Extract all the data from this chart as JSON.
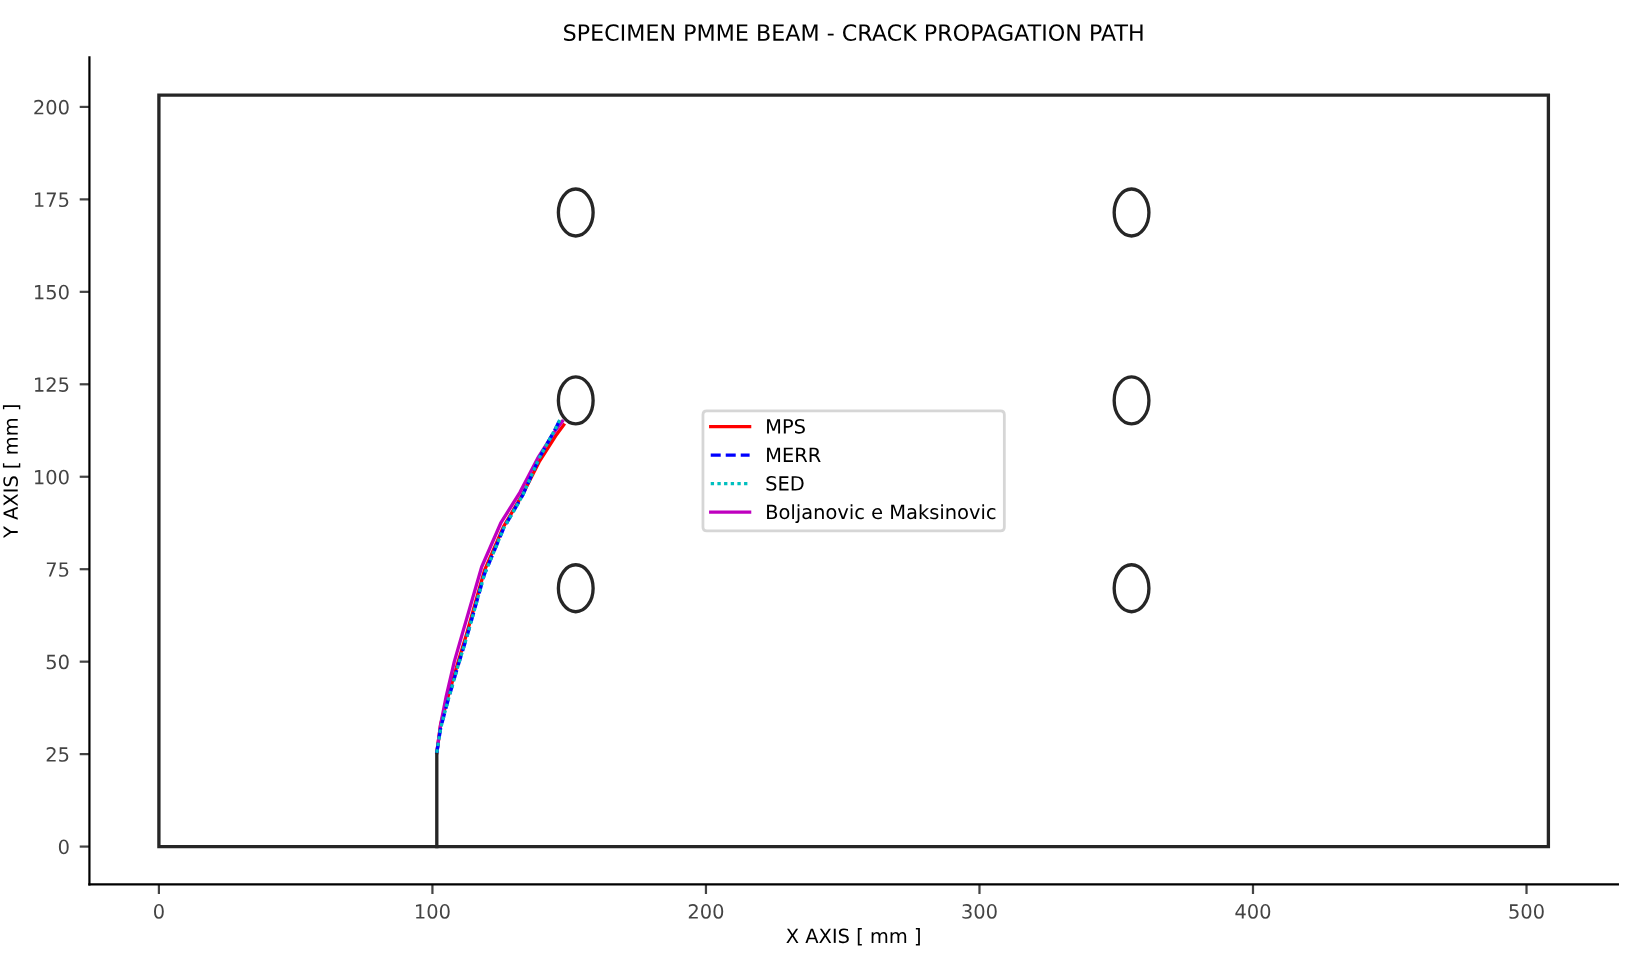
{
  "chart_data": {
    "type": "line",
    "title": "SPECIMEN PMME BEAM - CRACK PROPAGATION PATH",
    "xlabel": "X AXIS [ mm ]",
    "ylabel": "Y AXIS [ mm ]",
    "xlim": [
      -25.4,
      533.4
    ],
    "ylim": [
      -10.2,
      213.4
    ],
    "xticks": [
      0,
      100,
      200,
      300,
      400,
      500
    ],
    "yticks": [
      0,
      25,
      50,
      75,
      100,
      125,
      150,
      175,
      200
    ],
    "grid": false,
    "legend": "center",
    "series": [
      {
        "name": "MPS",
        "color": "#ff0000",
        "line_style": "solid",
        "x": [
          101.6,
          103,
          105.5,
          109,
          112.5,
          119,
          126,
          133,
          139,
          145,
          148
        ],
        "values": [
          25.4,
          33,
          40,
          49,
          57.5,
          74.6,
          86.5,
          95.3,
          104,
          111,
          114
        ]
      },
      {
        "name": "MERR",
        "color": "#0000ff",
        "line_style": "dashed",
        "x": [
          101.6,
          103,
          105.5,
          109,
          112.5,
          119,
          126,
          133,
          139,
          145,
          147
        ],
        "values": [
          25.4,
          32,
          39,
          48,
          56.5,
          73.6,
          86,
          95,
          105,
          113,
          116
        ]
      },
      {
        "name": "SED",
        "color": "#00bfbf",
        "line_style": "dotted",
        "x": [
          101.6,
          103,
          105.5,
          109,
          112.5,
          119,
          126,
          133,
          139,
          145,
          147
        ],
        "values": [
          25.4,
          32,
          39,
          48,
          56.5,
          73.6,
          86,
          95,
          105,
          113,
          116
        ]
      },
      {
        "name": "Boljanovic e Maksinovic",
        "color": "#bf00bf",
        "line_style": "solid",
        "x": [
          101.6,
          103,
          105,
          108,
          111.5,
          118,
          125,
          132,
          138.5,
          144.5,
          147.5
        ],
        "values": [
          25.4,
          33,
          40.5,
          50,
          59,
          75.6,
          87.5,
          95.8,
          105,
          112,
          115
        ]
      }
    ]
  }
}
